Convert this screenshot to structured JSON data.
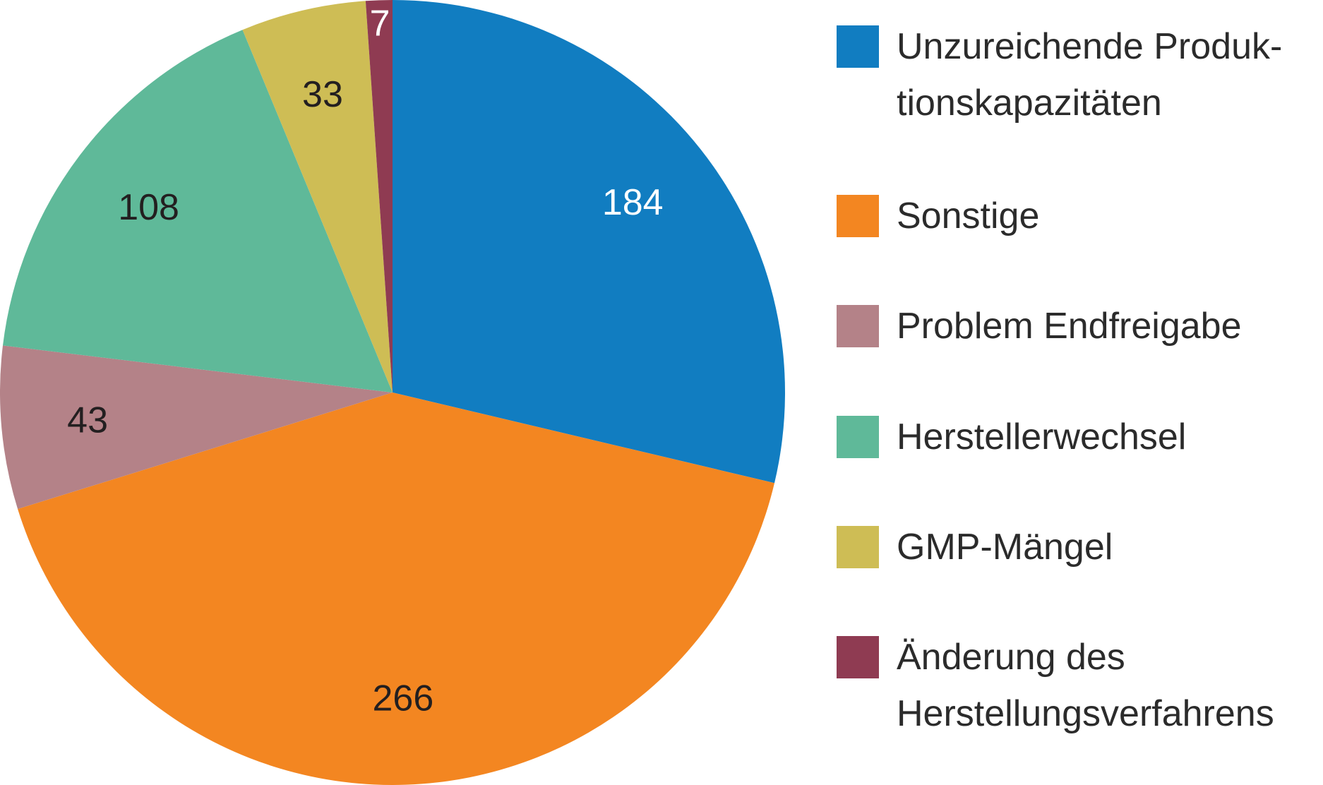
{
  "chart_data": {
    "type": "pie",
    "title": "",
    "legend_position": "right",
    "slices": [
      {
        "label": "Unzureichende Produk-\ntionskapazitäten",
        "value": 184,
        "value_label": "184",
        "color": "#117dc1",
        "label_color": "#ffffff"
      },
      {
        "label": "Sonstige",
        "value": 266,
        "value_label": "266",
        "color": "#f38621",
        "label_color": "#231f20"
      },
      {
        "label": "Problem Endfreigabe",
        "value": 43,
        "value_label": "43",
        "color": "#b48288",
        "label_color": "#231f20"
      },
      {
        "label": "Herstellerwechsel",
        "value": 108,
        "value_label": "108",
        "color": "#5fb999",
        "label_color": "#231f20"
      },
      {
        "label": "GMP-Mängel",
        "value": 33,
        "value_label": "33",
        "color": "#cebd55",
        "label_color": "#231f20"
      },
      {
        "label": "Änderung des\nHerstellungsverfahrens",
        "value": 7,
        "value_label": "7",
        "color": "#8f3b52",
        "label_color": "#ffffff"
      }
    ]
  }
}
